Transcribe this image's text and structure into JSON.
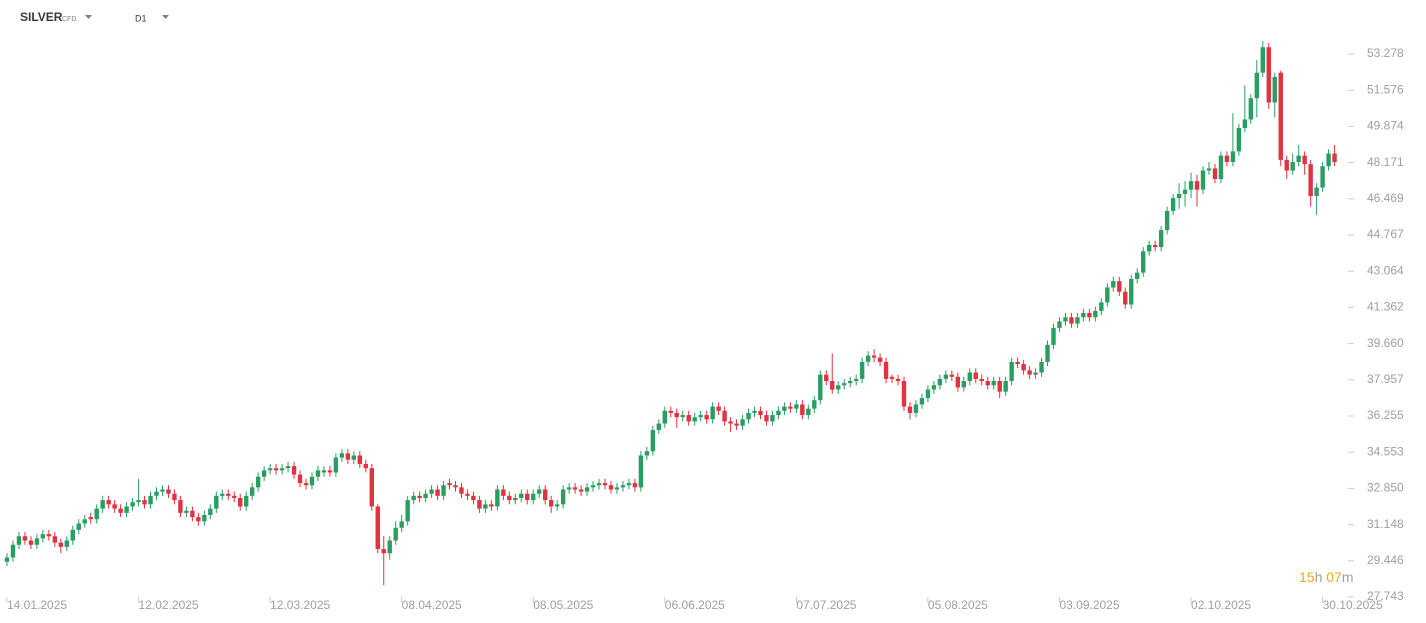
{
  "header": {
    "symbol": "SILVER",
    "instrument": "CFD",
    "timeframe": "D1"
  },
  "countdown": {
    "hours": "15",
    "hours_unit": "h",
    "minutes": "07",
    "minutes_unit": "m"
  },
  "chart_data": {
    "type": "candlestick",
    "up_color": "#2a9d62",
    "down_color": "#e0323f",
    "ylim": [
      27.743,
      55.82
    ],
    "yticks": [
      27.743,
      29.446,
      31.148,
      {
        "value": 32.85,
        "label": "32.850"
      },
      34.553,
      36.255,
      37.957,
      {
        "value": 39.66,
        "label": "39.660"
      },
      41.362,
      43.064,
      44.767,
      46.469,
      48.171,
      49.874,
      51.576,
      53.278
    ],
    "categories": [
      "14.01.2025",
      null,
      null,
      null,
      null,
      null,
      null,
      null,
      null,
      null,
      null,
      null,
      null,
      null,
      null,
      null,
      null,
      null,
      null,
      null,
      null,
      null,
      "12.02.2025",
      null,
      null,
      null,
      null,
      null,
      null,
      null,
      null,
      null,
      null,
      null,
      null,
      null,
      null,
      null,
      null,
      null,
      null,
      null,
      null,
      null,
      "12.03.2025",
      null,
      null,
      null,
      null,
      null,
      null,
      null,
      null,
      null,
      null,
      null,
      null,
      null,
      null,
      null,
      null,
      null,
      null,
      null,
      null,
      null,
      "08.04.2025",
      null,
      null,
      null,
      null,
      null,
      null,
      null,
      null,
      null,
      null,
      null,
      null,
      null,
      null,
      null,
      null,
      null,
      null,
      null,
      null,
      null,
      "08.05.2025",
      null,
      null,
      null,
      null,
      null,
      null,
      null,
      null,
      null,
      null,
      null,
      null,
      null,
      null,
      null,
      null,
      null,
      null,
      null,
      null,
      null,
      "06.06.2025",
      null,
      null,
      null,
      null,
      null,
      null,
      null,
      null,
      null,
      null,
      null,
      null,
      null,
      null,
      null,
      null,
      null,
      null,
      null,
      null,
      null,
      "07.07.2025",
      null,
      null,
      null,
      null,
      null,
      null,
      null,
      null,
      null,
      null,
      null,
      null,
      null,
      null,
      null,
      null,
      null,
      null,
      null,
      null,
      null,
      "05.08.2025",
      null,
      null,
      null,
      null,
      null,
      null,
      null,
      null,
      null,
      null,
      null,
      null,
      null,
      null,
      null,
      null,
      null,
      null,
      null,
      null,
      null,
      "03.09.2025",
      null,
      null,
      null,
      null,
      null,
      null,
      null,
      null,
      null,
      null,
      null,
      null,
      null,
      null,
      null,
      null,
      null,
      null,
      null,
      null,
      null,
      "02.10.2025",
      null,
      null,
      null,
      null,
      null,
      null,
      null,
      null,
      null,
      null,
      null,
      null,
      null,
      null,
      null,
      null,
      null,
      null,
      null,
      null,
      null,
      "30.10.2025",
      null,
      null
    ],
    "candles": [
      [
        29.4,
        29.8,
        29.2,
        29.6
      ],
      [
        29.6,
        30.4,
        29.4,
        30.2
      ],
      [
        30.2,
        30.8,
        30.0,
        30.6
      ],
      [
        30.6,
        30.8,
        30.2,
        30.4
      ],
      [
        30.4,
        30.6,
        30.0,
        30.2
      ],
      [
        30.2,
        30.7,
        30.0,
        30.5
      ],
      [
        30.5,
        30.9,
        30.3,
        30.7
      ],
      [
        30.7,
        30.9,
        30.4,
        30.6
      ],
      [
        30.6,
        30.8,
        30.1,
        30.3
      ],
      [
        30.3,
        30.5,
        29.8,
        30.1
      ],
      [
        30.1,
        30.6,
        29.9,
        30.4
      ],
      [
        30.4,
        31.1,
        30.2,
        30.9
      ],
      [
        30.9,
        31.4,
        30.7,
        31.2
      ],
      [
        31.2,
        31.6,
        31.0,
        31.4
      ],
      [
        31.5,
        31.7,
        31.2,
        31.4
      ],
      [
        31.4,
        32.1,
        31.2,
        31.9
      ],
      [
        31.9,
        32.5,
        31.7,
        32.3
      ],
      [
        32.3,
        32.5,
        31.9,
        32.1
      ],
      [
        32.1,
        32.3,
        31.7,
        31.9
      ],
      [
        31.9,
        32.1,
        31.5,
        31.7
      ],
      [
        31.7,
        32.2,
        31.5,
        32.0
      ],
      [
        32.0,
        32.4,
        31.8,
        32.2
      ],
      [
        32.2,
        33.3,
        32.0,
        32.3
      ],
      [
        32.3,
        32.5,
        31.9,
        32.1
      ],
      [
        32.1,
        32.7,
        31.9,
        32.5
      ],
      [
        32.5,
        32.9,
        32.3,
        32.7
      ],
      [
        32.7,
        33.0,
        32.5,
        32.8
      ],
      [
        32.8,
        33.0,
        32.4,
        32.6
      ],
      [
        32.6,
        32.8,
        32.1,
        32.3
      ],
      [
        32.3,
        32.5,
        31.5,
        31.7
      ],
      [
        31.7,
        32.0,
        31.5,
        31.8
      ],
      [
        31.8,
        32.0,
        31.3,
        31.5
      ],
      [
        31.5,
        31.7,
        31.1,
        31.3
      ],
      [
        31.3,
        31.8,
        31.1,
        31.6
      ],
      [
        31.6,
        32.1,
        31.4,
        31.9
      ],
      [
        31.9,
        32.7,
        31.7,
        32.5
      ],
      [
        32.5,
        32.8,
        32.3,
        32.6
      ],
      [
        32.6,
        32.8,
        32.3,
        32.5
      ],
      [
        32.5,
        32.7,
        32.2,
        32.4
      ],
      [
        32.4,
        32.6,
        31.8,
        32.0
      ],
      [
        32.0,
        32.7,
        31.8,
        32.5
      ],
      [
        32.5,
        33.1,
        32.3,
        32.9
      ],
      [
        32.9,
        33.6,
        32.7,
        33.4
      ],
      [
        33.4,
        33.9,
        33.2,
        33.7
      ],
      [
        33.7,
        34.0,
        33.5,
        33.8
      ],
      [
        33.8,
        34.0,
        33.5,
        33.7
      ],
      [
        33.7,
        34.0,
        33.5,
        33.8
      ],
      [
        33.8,
        34.1,
        33.6,
        33.9
      ],
      [
        33.9,
        34.1,
        33.3,
        33.5
      ],
      [
        33.5,
        33.7,
        32.9,
        33.1
      ],
      [
        33.1,
        33.3,
        32.8,
        33.0
      ],
      [
        33.0,
        33.6,
        32.8,
        33.4
      ],
      [
        33.4,
        33.9,
        33.2,
        33.7
      ],
      [
        33.6,
        33.9,
        33.4,
        33.7
      ],
      [
        33.7,
        33.9,
        33.4,
        33.6
      ],
      [
        33.6,
        34.5,
        33.4,
        34.3
      ],
      [
        34.3,
        34.7,
        34.1,
        34.5
      ],
      [
        34.5,
        34.7,
        34.0,
        34.2
      ],
      [
        34.2,
        34.6,
        34.0,
        34.4
      ],
      [
        34.4,
        34.6,
        33.8,
        34.0
      ],
      [
        34.0,
        34.2,
        33.6,
        33.8
      ],
      [
        33.8,
        34.0,
        31.8,
        32.0
      ],
      [
        32.0,
        32.1,
        29.8,
        30.0
      ],
      [
        30.0,
        30.6,
        28.3,
        29.8
      ],
      [
        29.8,
        30.6,
        29.5,
        30.4
      ],
      [
        30.4,
        31.3,
        30.2,
        31.0
      ],
      [
        31.0,
        31.6,
        30.8,
        31.3
      ],
      [
        31.3,
        32.5,
        31.1,
        32.3
      ],
      [
        32.3,
        32.7,
        32.1,
        32.5
      ],
      [
        32.5,
        32.7,
        32.2,
        32.4
      ],
      [
        32.4,
        32.8,
        32.2,
        32.6
      ],
      [
        32.6,
        33.0,
        32.4,
        32.8
      ],
      [
        32.8,
        33.0,
        32.3,
        32.5
      ],
      [
        32.5,
        33.2,
        32.3,
        33.0
      ],
      [
        33.1,
        33.3,
        32.8,
        33.0
      ],
      [
        33.0,
        33.2,
        32.7,
        32.9
      ],
      [
        32.9,
        33.1,
        32.4,
        32.6
      ],
      [
        32.6,
        32.8,
        32.3,
        32.5
      ],
      [
        32.5,
        32.7,
        32.1,
        32.3
      ],
      [
        32.3,
        32.5,
        31.7,
        31.9
      ],
      [
        31.9,
        32.3,
        31.7,
        32.1
      ],
      [
        32.1,
        32.3,
        31.8,
        32.0
      ],
      [
        32.0,
        33.0,
        31.8,
        32.8
      ],
      [
        32.8,
        33.0,
        32.3,
        32.5
      ],
      [
        32.5,
        32.7,
        32.1,
        32.3
      ],
      [
        32.3,
        32.6,
        32.1,
        32.4
      ],
      [
        32.4,
        32.8,
        32.2,
        32.6
      ],
      [
        32.6,
        32.8,
        32.1,
        32.3
      ],
      [
        32.3,
        32.8,
        32.1,
        32.6
      ],
      [
        32.6,
        33.0,
        32.4,
        32.8
      ],
      [
        32.8,
        33.0,
        32.1,
        32.3
      ],
      [
        32.3,
        32.5,
        31.7,
        32.0
      ],
      [
        32.0,
        32.3,
        31.8,
        32.1
      ],
      [
        32.1,
        33.0,
        31.9,
        32.8
      ],
      [
        32.8,
        33.1,
        32.6,
        32.9
      ],
      [
        32.9,
        33.1,
        32.6,
        32.8
      ],
      [
        32.8,
        33.0,
        32.5,
        32.7
      ],
      [
        32.7,
        33.1,
        32.5,
        32.9
      ],
      [
        32.9,
        33.2,
        32.7,
        33.0
      ],
      [
        33.0,
        33.3,
        32.8,
        33.1
      ],
      [
        33.1,
        33.3,
        32.8,
        33.0
      ],
      [
        33.0,
        33.2,
        32.6,
        32.8
      ],
      [
        32.8,
        33.1,
        32.6,
        32.9
      ],
      [
        32.9,
        33.2,
        32.7,
        33.0
      ],
      [
        33.0,
        33.3,
        32.8,
        33.1
      ],
      [
        33.1,
        33.3,
        32.7,
        32.9
      ],
      [
        32.9,
        34.6,
        32.7,
        34.4
      ],
      [
        34.4,
        34.8,
        34.2,
        34.6
      ],
      [
        34.6,
        35.8,
        34.4,
        35.6
      ],
      [
        35.6,
        36.1,
        35.4,
        35.9
      ],
      [
        35.9,
        36.7,
        35.7,
        36.5
      ],
      [
        36.5,
        36.7,
        36.2,
        36.4
      ],
      [
        36.4,
        36.6,
        35.7,
        36.2
      ],
      [
        36.2,
        36.5,
        36.0,
        36.3
      ],
      [
        36.3,
        36.5,
        35.8,
        36.0
      ],
      [
        36.0,
        36.4,
        35.8,
        36.2
      ],
      [
        36.2,
        36.5,
        36.0,
        36.3
      ],
      [
        36.3,
        36.5,
        35.9,
        36.1
      ],
      [
        36.1,
        36.9,
        35.9,
        36.7
      ],
      [
        36.7,
        36.9,
        36.3,
        36.5
      ],
      [
        36.5,
        36.7,
        35.8,
        36.0
      ],
      [
        36.0,
        36.2,
        35.5,
        35.9
      ],
      [
        35.9,
        36.1,
        35.6,
        35.8
      ],
      [
        35.8,
        36.3,
        35.6,
        36.1
      ],
      [
        36.1,
        36.6,
        35.9,
        36.4
      ],
      [
        36.4,
        36.7,
        36.2,
        36.5
      ],
      [
        36.5,
        36.7,
        36.1,
        36.3
      ],
      [
        36.3,
        36.5,
        35.8,
        36.0
      ],
      [
        36.0,
        36.5,
        35.8,
        36.3
      ],
      [
        36.3,
        36.7,
        36.1,
        36.5
      ],
      [
        36.5,
        36.9,
        36.3,
        36.7
      ],
      [
        36.7,
        36.9,
        36.4,
        36.6
      ],
      [
        36.6,
        37.0,
        36.4,
        36.8
      ],
      [
        36.8,
        37.0,
        36.1,
        36.3
      ],
      [
        36.3,
        36.8,
        36.1,
        36.6
      ],
      [
        36.6,
        37.2,
        36.4,
        37.0
      ],
      [
        37.0,
        38.4,
        36.8,
        38.2
      ],
      [
        38.2,
        38.4,
        37.7,
        37.9
      ],
      [
        37.9,
        39.2,
        37.3,
        37.5
      ],
      [
        37.5,
        37.9,
        37.3,
        37.7
      ],
      [
        37.7,
        38.0,
        37.5,
        37.8
      ],
      [
        37.8,
        38.1,
        37.6,
        37.9
      ],
      [
        37.9,
        38.2,
        37.7,
        38.0
      ],
      [
        38.0,
        39.0,
        37.8,
        38.8
      ],
      [
        38.8,
        39.3,
        38.6,
        39.1
      ],
      [
        39.1,
        39.4,
        38.8,
        39.0
      ],
      [
        39.0,
        39.2,
        38.6,
        38.8
      ],
      [
        38.8,
        39.0,
        37.8,
        38.0
      ],
      [
        38.1,
        38.2,
        37.8,
        38.0
      ],
      [
        38.0,
        38.2,
        37.7,
        37.9
      ],
      [
        37.9,
        38.1,
        36.5,
        36.7
      ],
      [
        36.7,
        36.9,
        36.1,
        36.4
      ],
      [
        36.4,
        37.0,
        36.2,
        36.8
      ],
      [
        36.8,
        37.3,
        36.6,
        37.1
      ],
      [
        37.1,
        37.7,
        36.9,
        37.5
      ],
      [
        37.5,
        37.9,
        37.3,
        37.7
      ],
      [
        37.7,
        38.2,
        37.5,
        38.0
      ],
      [
        38.0,
        38.4,
        37.8,
        38.2
      ],
      [
        38.2,
        38.4,
        37.9,
        38.1
      ],
      [
        38.1,
        38.3,
        37.4,
        37.6
      ],
      [
        37.6,
        38.1,
        37.4,
        37.9
      ],
      [
        37.9,
        38.5,
        37.7,
        38.3
      ],
      [
        38.3,
        38.5,
        37.8,
        38.0
      ],
      [
        38.0,
        38.2,
        37.7,
        37.9
      ],
      [
        37.9,
        38.1,
        37.5,
        37.7
      ],
      [
        37.7,
        38.1,
        37.5,
        37.9
      ],
      [
        37.9,
        38.1,
        37.1,
        37.4
      ],
      [
        37.4,
        38.1,
        37.2,
        37.9
      ],
      [
        37.9,
        39.0,
        37.7,
        38.8
      ],
      [
        38.8,
        39.0,
        38.5,
        38.7
      ],
      [
        38.7,
        38.9,
        38.2,
        38.4
      ],
      [
        38.4,
        38.6,
        38.0,
        38.2
      ],
      [
        38.2,
        38.5,
        38.0,
        38.3
      ],
      [
        38.3,
        39.0,
        38.1,
        38.8
      ],
      [
        38.8,
        39.8,
        38.6,
        39.6
      ],
      [
        39.6,
        40.6,
        39.4,
        40.4
      ],
      [
        40.4,
        40.9,
        40.2,
        40.7
      ],
      [
        40.7,
        41.1,
        40.5,
        40.9
      ],
      [
        40.9,
        41.1,
        40.4,
        40.6
      ],
      [
        40.6,
        41.1,
        40.4,
        40.9
      ],
      [
        40.9,
        41.3,
        40.7,
        41.1
      ],
      [
        41.1,
        41.3,
        40.7,
        40.9
      ],
      [
        40.9,
        41.4,
        40.7,
        41.2
      ],
      [
        41.2,
        41.8,
        41.0,
        41.6
      ],
      [
        41.6,
        42.5,
        41.4,
        42.3
      ],
      [
        42.3,
        42.8,
        42.1,
        42.6
      ],
      [
        42.6,
        42.8,
        41.9,
        42.1
      ],
      [
        42.1,
        42.3,
        41.3,
        41.5
      ],
      [
        41.5,
        42.9,
        41.3,
        42.7
      ],
      [
        42.7,
        43.2,
        42.5,
        43.0
      ],
      [
        43.0,
        44.2,
        42.8,
        44.0
      ],
      [
        44.0,
        44.5,
        43.8,
        44.3
      ],
      [
        44.3,
        44.5,
        44.0,
        44.2
      ],
      [
        44.2,
        45.2,
        44.0,
        45.0
      ],
      [
        45.0,
        46.1,
        44.8,
        45.9
      ],
      [
        45.9,
        46.7,
        45.7,
        46.5
      ],
      [
        46.5,
        47.2,
        46.0,
        46.7
      ],
      [
        46.7,
        47.3,
        46.1,
        46.9
      ],
      [
        46.9,
        47.7,
        46.5,
        47.3
      ],
      [
        47.3,
        47.6,
        46.1,
        46.9
      ],
      [
        46.9,
        48.0,
        46.7,
        47.8
      ],
      [
        47.8,
        48.2,
        47.6,
        47.9
      ],
      [
        47.9,
        48.1,
        47.2,
        47.4
      ],
      [
        47.4,
        48.7,
        47.2,
        48.5
      ],
      [
        48.5,
        48.7,
        48.0,
        48.2
      ],
      [
        48.2,
        50.5,
        48.0,
        48.7
      ],
      [
        48.7,
        50.0,
        48.5,
        49.8
      ],
      [
        49.8,
        51.8,
        49.6,
        50.2
      ],
      [
        50.2,
        51.4,
        50.0,
        51.2
      ],
      [
        51.2,
        53.0,
        50.3,
        52.4
      ],
      [
        52.4,
        53.9,
        52.2,
        53.6
      ],
      [
        53.6,
        53.8,
        50.7,
        51.0
      ],
      [
        51.0,
        52.4,
        50.3,
        52.2
      ],
      [
        52.4,
        52.5,
        48.0,
        48.3
      ],
      [
        48.3,
        48.5,
        47.4,
        47.8
      ],
      [
        47.8,
        48.6,
        47.6,
        48.2
      ],
      [
        48.2,
        49.0,
        48.0,
        48.5
      ],
      [
        48.5,
        48.7,
        47.6,
        48.1
      ],
      [
        48.1,
        48.3,
        46.1,
        46.6
      ],
      [
        46.6,
        47.2,
        45.7,
        47.0
      ],
      [
        47.0,
        48.2,
        46.8,
        48.0
      ],
      [
        48.0,
        48.8,
        47.8,
        48.6
      ],
      [
        48.6,
        49.0,
        48.0,
        48.2
      ]
    ]
  }
}
